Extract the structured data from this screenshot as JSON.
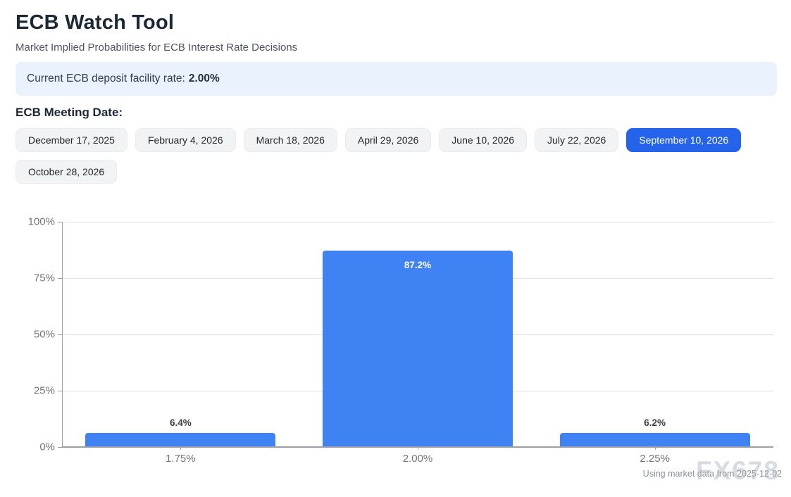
{
  "page": {
    "title": "ECB Watch Tool",
    "subtitle": "Market Implied Probabilities for ECB Interest Rate Decisions"
  },
  "banner": {
    "label": "Current ECB deposit facility rate:",
    "value": "2.00%"
  },
  "meeting_dates": {
    "heading": "ECB Meeting Date:",
    "options": [
      {
        "label": "December 17, 2025",
        "selected": false
      },
      {
        "label": "February 4, 2026",
        "selected": false
      },
      {
        "label": "March 18, 2026",
        "selected": false
      },
      {
        "label": "April 29, 2026",
        "selected": false
      },
      {
        "label": "June 10, 2026",
        "selected": false
      },
      {
        "label": "July 22, 2026",
        "selected": false
      },
      {
        "label": "September 10, 2026",
        "selected": true
      },
      {
        "label": "October 28, 2026",
        "selected": false
      }
    ]
  },
  "chart_data": {
    "type": "bar",
    "title": "",
    "xlabel": "",
    "ylabel": "",
    "categories": [
      "1.75%",
      "2.00%",
      "2.25%"
    ],
    "values": [
      6.4,
      87.2,
      6.2
    ],
    "value_labels": [
      "6.4%",
      "87.2%",
      "6.2%"
    ],
    "ylim": [
      0,
      100
    ],
    "ytick_labels": [
      "0%",
      "25%",
      "50%",
      "75%",
      "100%"
    ],
    "ytick_values": [
      0,
      25,
      50,
      75,
      100
    ],
    "grid": true,
    "legend_position": "none",
    "bar_color": "#3e82f4"
  },
  "footer": {
    "note": "Using market data from 2025-12-02",
    "watermark": "FX678"
  },
  "colors": {
    "accent": "#2563eb",
    "banner_bg": "#eaf2fd",
    "bar": "#3e82f4",
    "grid": "#e0e0e0",
    "axis": "#9aa0a6",
    "axis_text": "#757575"
  }
}
